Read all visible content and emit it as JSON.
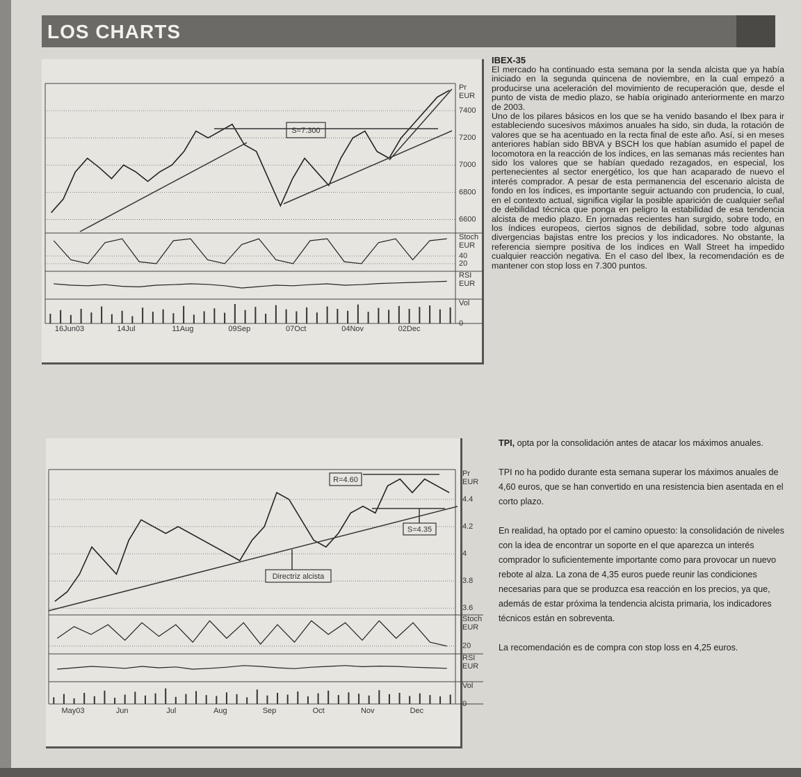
{
  "header": {
    "title": "LOS CHARTS"
  },
  "charts": [
    {
      "type": "line",
      "price": {
        "labels": [
          "Pr",
          "EUR"
        ],
        "ylim": [
          6500,
          7600
        ],
        "yticks": [
          6600,
          6800,
          7000,
          7200,
          7400
        ],
        "values": [
          6650,
          6750,
          6950,
          7050,
          6980,
          6900,
          7000,
          6950,
          6880,
          6950,
          7000,
          7100,
          7250,
          7200,
          7250,
          7300,
          7150,
          7100,
          6900,
          6700,
          6900,
          7050,
          6950,
          6850,
          7050,
          7200,
          7250,
          7100,
          7050,
          7200,
          7300,
          7400,
          7500,
          7550
        ]
      },
      "stoch": {
        "labels": [
          "Stoch",
          "EUR"
        ],
        "ylim": [
          0,
          100
        ],
        "yticks": [
          40,
          20
        ],
        "values": [
          80,
          30,
          20,
          75,
          85,
          25,
          20,
          80,
          85,
          30,
          20,
          70,
          85,
          30,
          20,
          80,
          85,
          25,
          20,
          75,
          85,
          30,
          80,
          85
        ]
      },
      "rsi": {
        "labels": [
          "RSI",
          "EUR"
        ],
        "ylim": [
          0,
          100
        ],
        "values": [
          55,
          50,
          48,
          52,
          46,
          44,
          50,
          52,
          55,
          53,
          48,
          40,
          45,
          50,
          48,
          52,
          55,
          50,
          52,
          56,
          58,
          60,
          62,
          64
        ]
      },
      "volume": {
        "labels": [
          "Vol"
        ],
        "ylim": [
          0,
          100
        ],
        "yticks": [
          0
        ],
        "values": [
          40,
          55,
          35,
          60,
          45,
          70,
          38,
          52,
          30,
          65,
          48,
          58,
          42,
          72,
          36,
          50,
          62,
          44,
          80,
          55,
          68,
          40,
          75,
          58,
          50,
          66,
          45,
          70,
          60,
          52,
          78,
          48,
          64,
          56,
          72,
          60,
          68,
          74,
          58,
          66
        ]
      },
      "x_labels": [
        "16Jun03",
        "14Jul",
        "11Aug",
        "09Sep",
        "07Oct",
        "04Nov",
        "02Dec"
      ],
      "annotations": [
        "S=7.300"
      ]
    },
    {
      "type": "line",
      "price": {
        "labels": [
          "Pr",
          "EUR"
        ],
        "ylim": [
          3.55,
          4.62
        ],
        "yticks": [
          3.6,
          3.8,
          4,
          4.2,
          4.4
        ],
        "values": [
          3.65,
          3.72,
          3.85,
          4.05,
          3.95,
          3.85,
          4.1,
          4.25,
          4.2,
          4.15,
          4.2,
          4.15,
          4.1,
          4.05,
          4.0,
          3.95,
          4.1,
          4.2,
          4.45,
          4.4,
          4.25,
          4.1,
          4.05,
          4.15,
          4.3,
          4.35,
          4.3,
          4.5,
          4.55,
          4.45,
          4.55,
          4.5,
          4.45
        ]
      },
      "stoch": {
        "labels": [
          "Stoch",
          "EUR"
        ],
        "ylim": [
          0,
          100
        ],
        "yticks": [
          20
        ],
        "values": [
          40,
          70,
          50,
          75,
          35,
          80,
          45,
          75,
          30,
          85,
          40,
          80,
          25,
          75,
          30,
          85,
          50,
          80,
          35,
          85,
          40,
          80,
          30,
          20
        ]
      },
      "rsi": {
        "labels": [
          "RSI",
          "EUR"
        ],
        "ylim": [
          0,
          100
        ],
        "values": [
          45,
          50,
          55,
          52,
          48,
          55,
          50,
          53,
          45,
          48,
          52,
          58,
          55,
          50,
          47,
          52,
          55,
          58,
          54,
          56,
          55,
          52,
          50,
          48
        ]
      },
      "volume": {
        "labels": [
          "Vol"
        ],
        "ylim": [
          0,
          100
        ],
        "yticks": [
          0
        ],
        "values": [
          30,
          45,
          25,
          50,
          35,
          60,
          28,
          42,
          55,
          38,
          48,
          70,
          32,
          45,
          58,
          40,
          36,
          52,
          44,
          30,
          65,
          38,
          50,
          42,
          56,
          34,
          48,
          60,
          40,
          52,
          46,
          38,
          62,
          44,
          50,
          36,
          48,
          40,
          34,
          42
        ]
      },
      "x_labels": [
        "May03",
        "Jun",
        "Jul",
        "Aug",
        "Sep",
        "Oct",
        "Nov",
        "Dec"
      ],
      "annotations": [
        "R=4.60",
        "S=4.35",
        "Directriz alcista"
      ]
    }
  ],
  "articles": [
    {
      "title": "IBEX-35",
      "paragraphs": [
        "El mercado ha continuado esta semana por la senda alcista que ya había iniciado en la segunda quincena de noviembre, en la cual empezó a producirse una aceleración del movimiento de recuperación que, desde el punto de vista de medio plazo, se había originado anteriormente en marzo de 2003.",
        "Uno de los pilares básicos en los que se ha venido basando el Ibex para ir estableciendo sucesivos máximos anuales ha sido, sin duda, la rotación de valores que se ha acentuado en la recta final de este año. Así, si en meses anteriores habían sido BBVA y BSCH los que habían asumido el papel de locomotora en la reacción de los índices, en las semanas más recientes han sido los valores que se habían quedado rezagados, en especial, los pertenecientes al sector energético, los que han acaparado de nuevo el interés comprador. A pesar de esta permanencia del escenario alcista de fondo en los índices, es importante seguir actuando con prudencia, lo cual, en el contexto actual, significa vigilar la posible aparición de cualquier señal de debilidad técnica que ponga en peligro la estabilidad de esa tendencia alcista de medio plazo. En jornadas recientes han surgido, sobre todo, en los índices europeos, ciertos signos de debilidad, sobre todo algunas divergencias bajistas entre los precios y los indicadores. No obstante, la referencia siempre positiva de los índices en Wall Street ha impedido cualquier reacción negativa. En el caso del Ibex, la recomendación es de mantener con stop loss en 7.300 puntos."
      ]
    },
    {
      "title": "TPI,",
      "lead": " opta por la consolidación antes de atacar los máximos anuales.",
      "paragraphs": [
        "TPI no ha podido durante esta semana superar los máximos anuales de 4,60 euros, que se han convertido en una resistencia bien asentada en el corto plazo.",
        "En realidad, ha optado por el camino opuesto: la consolidación de niveles con la idea de encontrar un soporte en el que aparezca un interés comprador lo suficientemente importante como para provocar un nuevo rebote al alza. La zona de 4,35 euros puede reunir las condiciones necesarias para que se produzca esa reacción en los precios, ya que, además de estar próxima la tendencia alcista primaria, los indicadores técnicos están en sobreventa.",
        "La recomendación es de compra con stop loss en 4,25 euros."
      ]
    }
  ]
}
